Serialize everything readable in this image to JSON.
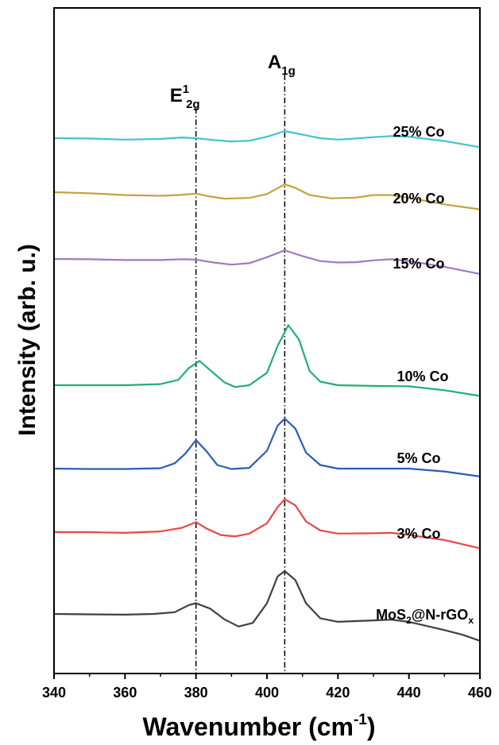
{
  "chart_data": {
    "type": "line",
    "xlabel": "Wavenumber (cm",
    "xlabel_superscript": "-1",
    "xlabel_suffix": ")",
    "ylabel": "Intensity (arb. u.)",
    "xlim": [
      340,
      460
    ],
    "x_ticks": [
      "340",
      "360",
      "380",
      "400",
      "420",
      "440",
      "460"
    ],
    "y_ticks_shown": false,
    "grid": false,
    "legend": "none",
    "reference_lines": [
      {
        "x": 380,
        "label_main": "E",
        "label_sup": "1",
        "label_sub": "2g"
      },
      {
        "x": 405,
        "label_main": "A",
        "label_sup": "",
        "label_sub": "1g"
      }
    ],
    "series": [
      {
        "label": "25% Co",
        "color": "#3fc5cf",
        "points": [
          [
            340,
            1.0
          ],
          [
            350,
            0.99
          ],
          [
            360,
            0.96
          ],
          [
            370,
            0.98
          ],
          [
            376,
            1.02
          ],
          [
            380,
            1.0
          ],
          [
            385,
            0.95
          ],
          [
            390,
            0.91
          ],
          [
            395,
            0.93
          ],
          [
            400,
            1.04
          ],
          [
            405,
            1.2
          ],
          [
            410,
            1.1
          ],
          [
            415,
            1.0
          ],
          [
            420,
            0.96
          ],
          [
            425,
            0.99
          ],
          [
            430,
            1.03
          ],
          [
            435,
            1.06
          ],
          [
            440,
            1.04
          ],
          [
            450,
            0.92
          ],
          [
            460,
            0.75
          ]
        ]
      },
      {
        "label": "20% Co",
        "color": "#c4a23d",
        "points": [
          [
            340,
            1.0
          ],
          [
            350,
            0.97
          ],
          [
            360,
            0.92
          ],
          [
            370,
            0.9
          ],
          [
            375,
            0.92
          ],
          [
            380,
            0.96
          ],
          [
            384,
            0.88
          ],
          [
            388,
            0.82
          ],
          [
            395,
            0.84
          ],
          [
            400,
            0.95
          ],
          [
            405,
            1.22
          ],
          [
            408,
            1.12
          ],
          [
            412,
            0.92
          ],
          [
            418,
            0.83
          ],
          [
            425,
            0.85
          ],
          [
            430,
            0.92
          ],
          [
            435,
            0.92
          ],
          [
            440,
            0.84
          ],
          [
            450,
            0.66
          ],
          [
            460,
            0.52
          ]
        ]
      },
      {
        "label": "15% Co",
        "color": "#a17ac1",
        "points": [
          [
            340,
            1.0
          ],
          [
            350,
            0.99
          ],
          [
            360,
            0.97
          ],
          [
            370,
            0.97
          ],
          [
            376,
            0.99
          ],
          [
            380,
            0.98
          ],
          [
            385,
            0.9
          ],
          [
            390,
            0.84
          ],
          [
            395,
            0.88
          ],
          [
            400,
            1.05
          ],
          [
            405,
            1.24
          ],
          [
            410,
            1.08
          ],
          [
            415,
            0.94
          ],
          [
            420,
            0.9
          ],
          [
            425,
            0.91
          ],
          [
            430,
            0.96
          ],
          [
            435,
            0.99
          ],
          [
            440,
            0.94
          ],
          [
            450,
            0.78
          ],
          [
            460,
            0.58
          ]
        ]
      },
      {
        "label": "10% Co",
        "color": "#22ae73",
        "points": [
          [
            340,
            1.0
          ],
          [
            350,
            1.0
          ],
          [
            360,
            1.0
          ],
          [
            370,
            1.03
          ],
          [
            375,
            1.15
          ],
          [
            378,
            1.48
          ],
          [
            381,
            1.68
          ],
          [
            384,
            1.42
          ],
          [
            388,
            1.08
          ],
          [
            391,
            0.95
          ],
          [
            395,
            1.0
          ],
          [
            400,
            1.35
          ],
          [
            403,
            2.1
          ],
          [
            406,
            2.68
          ],
          [
            409,
            2.28
          ],
          [
            412,
            1.4
          ],
          [
            415,
            1.1
          ],
          [
            420,
            1.0
          ],
          [
            430,
            0.98
          ],
          [
            440,
            0.97
          ],
          [
            450,
            0.86
          ],
          [
            460,
            0.7
          ]
        ]
      },
      {
        "label": "5% Co",
        "color": "#2a5cb8",
        "points": [
          [
            340,
            1.0
          ],
          [
            350,
            0.99
          ],
          [
            360,
            0.99
          ],
          [
            370,
            1.01
          ],
          [
            374,
            1.15
          ],
          [
            377,
            1.42
          ],
          [
            380,
            1.8
          ],
          [
            383,
            1.48
          ],
          [
            386,
            1.1
          ],
          [
            390,
            0.99
          ],
          [
            395,
            1.02
          ],
          [
            400,
            1.5
          ],
          [
            403,
            2.2
          ],
          [
            405,
            2.4
          ],
          [
            408,
            2.12
          ],
          [
            411,
            1.45
          ],
          [
            415,
            1.1
          ],
          [
            420,
            1.0
          ],
          [
            430,
            1.0
          ],
          [
            440,
            1.0
          ],
          [
            450,
            0.92
          ],
          [
            460,
            0.78
          ]
        ]
      },
      {
        "label": "3% Co",
        "color": "#e84746",
        "points": [
          [
            340,
            1.0
          ],
          [
            350,
            1.0
          ],
          [
            360,
            0.98
          ],
          [
            370,
            1.02
          ],
          [
            376,
            1.12
          ],
          [
            380,
            1.28
          ],
          [
            383,
            1.1
          ],
          [
            387,
            0.92
          ],
          [
            391,
            0.88
          ],
          [
            395,
            0.96
          ],
          [
            400,
            1.25
          ],
          [
            403,
            1.7
          ],
          [
            405,
            1.92
          ],
          [
            408,
            1.75
          ],
          [
            411,
            1.3
          ],
          [
            415,
            1.05
          ],
          [
            420,
            0.96
          ],
          [
            430,
            0.97
          ],
          [
            435,
            0.98
          ],
          [
            440,
            0.92
          ],
          [
            450,
            0.78
          ],
          [
            460,
            0.55
          ]
        ]
      },
      {
        "label_main": "MoS",
        "label_sub": "2",
        "label_mid": "@N-rGO",
        "label_sub2": "x",
        "color": "#404040",
        "points": [
          [
            340,
            1.0
          ],
          [
            350,
            0.99
          ],
          [
            360,
            0.98
          ],
          [
            368,
            1.0
          ],
          [
            374,
            1.05
          ],
          [
            378,
            1.25
          ],
          [
            380,
            1.3
          ],
          [
            384,
            1.15
          ],
          [
            388,
            0.85
          ],
          [
            392,
            0.65
          ],
          [
            396,
            0.75
          ],
          [
            400,
            1.3
          ],
          [
            403,
            2.05
          ],
          [
            405,
            2.2
          ],
          [
            408,
            1.95
          ],
          [
            411,
            1.3
          ],
          [
            415,
            0.88
          ],
          [
            420,
            0.78
          ],
          [
            430,
            0.82
          ],
          [
            435,
            0.84
          ],
          [
            440,
            0.78
          ],
          [
            450,
            0.55
          ],
          [
            455,
            0.42
          ],
          [
            460,
            0.25
          ]
        ]
      }
    ]
  }
}
